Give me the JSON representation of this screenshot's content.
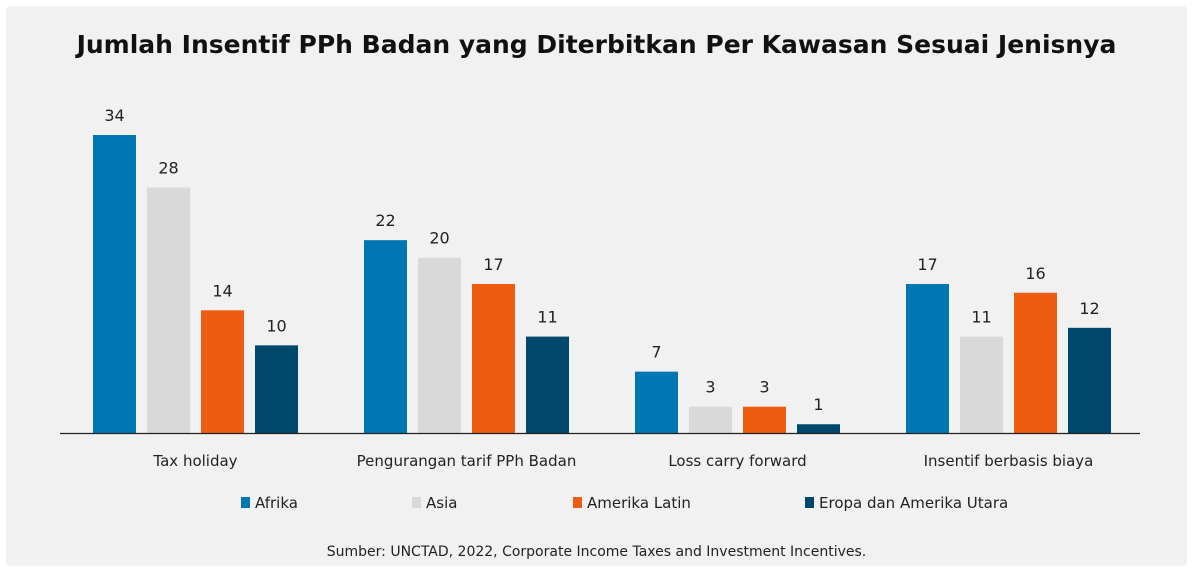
{
  "chart_data": {
    "type": "bar",
    "title": "Jumlah Insentif PPh Badan yang Diterbitkan Per Kawasan Sesuai Jenisnya",
    "categories": [
      "Tax holiday",
      "Pengurangan tarif PPh Badan",
      "Loss carry forward",
      "Insentif berbasis biaya"
    ],
    "series": [
      {
        "name": "Afrika",
        "color": "#0077b3",
        "values": [
          34,
          22,
          7,
          17
        ]
      },
      {
        "name": "Asia",
        "color": "#d9d9d9",
        "values": [
          28,
          20,
          3,
          11
        ]
      },
      {
        "name": "Amerika Latin",
        "color": "#ee5c12",
        "values": [
          14,
          17,
          3,
          16
        ]
      },
      {
        "name": "Eropa dan Amerika Utara",
        "color": "#00486b",
        "values": [
          10,
          11,
          1,
          12
        ]
      }
    ],
    "ylim": [
      0,
      34
    ],
    "grid": false,
    "legend_position": "bottom",
    "data_labels": true
  },
  "source": "Sumber: UNCTAD, 2022, Corporate Income Taxes and Investment Incentives."
}
